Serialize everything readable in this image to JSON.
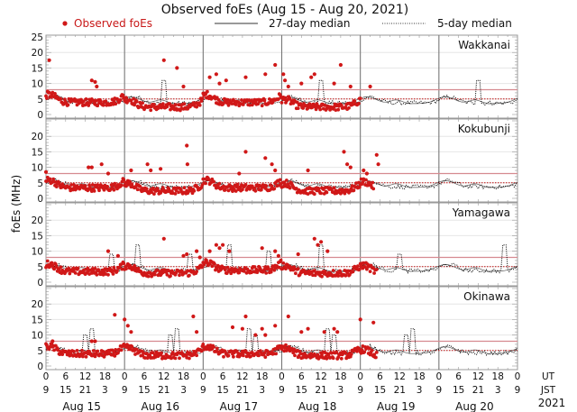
{
  "chart_data": {
    "type": "scatter",
    "title": "Observed foEs (Aug 15 - Aug 20, 2021)",
    "ylabel": "foEs (MHz)",
    "xlabel": "",
    "ylim": [
      0,
      25
    ],
    "yticks": [
      0,
      5,
      10,
      15,
      20,
      25
    ],
    "xlim_hours_ut": [
      0,
      144
    ],
    "legend": {
      "placement": "top",
      "entries": [
        {
          "label": "Observed foEs",
          "style": "red-dot"
        },
        {
          "label": "27-day median",
          "style": "solid-line"
        },
        {
          "label": "5-day median",
          "style": "dotted-line"
        }
      ]
    },
    "x_axis": {
      "ut_label": "UT",
      "jst_label": "JST",
      "year_label": "2021",
      "ut_ticks": [
        "0",
        "6",
        "12",
        "18",
        "0",
        "6",
        "12",
        "18",
        "0",
        "6",
        "12",
        "18",
        "0",
        "6",
        "12",
        "18",
        "0",
        "6",
        "12",
        "18",
        "0",
        "6",
        "12",
        "18",
        "0"
      ],
      "jst_ticks": [
        "9",
        "15",
        "21",
        "3",
        "9",
        "15",
        "21",
        "3",
        "9",
        "15",
        "21",
        "3",
        "9",
        "15",
        "21",
        "3",
        "9",
        "15",
        "21",
        "3",
        "9",
        "15",
        "21",
        "3",
        "9"
      ],
      "days": [
        "Aug 15",
        "Aug 16",
        "Aug 17",
        "Aug 18",
        "Aug 19",
        "Aug 20"
      ]
    },
    "reference_lines": {
      "upper_threshold_mhz": 8,
      "lower_threshold_mhz": 5
    },
    "colors": {
      "observed": "#d01818",
      "upper_threshold": "#d68a90",
      "lower_threshold": "#c01010",
      "median27": "#555555",
      "median5": "#000000",
      "grid": "#e6e6e6",
      "day_divider": "#777777"
    },
    "panels": [
      {
        "station": "Wakkanai",
        "observed_hours": [
          0,
          96
        ],
        "observed_base_mhz": [
          4.5,
          3.0,
          4.5,
          3.0,
          4.0,
          5.5
        ],
        "median27_base_mhz": 4.5,
        "median5_spikes": [
          {
            "hour": 36,
            "mhz": 11
          },
          {
            "hour": 84,
            "mhz": 11
          },
          {
            "hour": 132,
            "mhz": 11
          }
        ],
        "outliers": [
          {
            "hour": 1,
            "mhz": 17.5
          },
          {
            "hour": 14,
            "mhz": 11
          },
          {
            "hour": 15,
            "mhz": 10.5
          },
          {
            "hour": 15.5,
            "mhz": 9
          },
          {
            "hour": 36,
            "mhz": 17.5
          },
          {
            "hour": 40,
            "mhz": 15
          },
          {
            "hour": 42,
            "mhz": 9
          },
          {
            "hour": 61,
            "mhz": 12
          },
          {
            "hour": 70,
            "mhz": 16
          },
          {
            "hour": 72.5,
            "mhz": 13
          },
          {
            "hour": 73,
            "mhz": 11
          },
          {
            "hour": 74,
            "mhz": 9
          },
          {
            "hour": 50,
            "mhz": 12
          },
          {
            "hour": 53,
            "mhz": 10
          },
          {
            "hour": 55,
            "mhz": 11
          },
          {
            "hour": 52,
            "mhz": 13
          },
          {
            "hour": 67,
            "mhz": 13
          },
          {
            "hour": 78,
            "mhz": 10
          },
          {
            "hour": 81,
            "mhz": 12
          },
          {
            "hour": 82,
            "mhz": 13
          },
          {
            "hour": 88,
            "mhz": 10
          },
          {
            "hour": 93,
            "mhz": 9
          },
          {
            "hour": 90,
            "mhz": 16
          },
          {
            "hour": 99,
            "mhz": 9
          }
        ]
      },
      {
        "station": "Kokubunji",
        "observed_hours": [
          0,
          100
        ],
        "observed_base_mhz": [
          4.0,
          3.0,
          4.0,
          3.0,
          3.5,
          4.5
        ],
        "median27_base_mhz": 4.5,
        "median5_spikes": [],
        "outliers": [
          {
            "hour": 0,
            "mhz": 8.5
          },
          {
            "hour": 13,
            "mhz": 10
          },
          {
            "hour": 14,
            "mhz": 10
          },
          {
            "hour": 17,
            "mhz": 11
          },
          {
            "hour": 19,
            "mhz": 8
          },
          {
            "hour": 26,
            "mhz": 9
          },
          {
            "hour": 31,
            "mhz": 11
          },
          {
            "hour": 32,
            "mhz": 9
          },
          {
            "hour": 35,
            "mhz": 9.5
          },
          {
            "hour": 43,
            "mhz": 17
          },
          {
            "hour": 43.2,
            "mhz": 11
          },
          {
            "hour": 61,
            "mhz": 15
          },
          {
            "hour": 80,
            "mhz": 9
          },
          {
            "hour": 59,
            "mhz": 8
          },
          {
            "hour": 67,
            "mhz": 13
          },
          {
            "hour": 69,
            "mhz": 11
          },
          {
            "hour": 70,
            "mhz": 9
          },
          {
            "hour": 91,
            "mhz": 15
          },
          {
            "hour": 92,
            "mhz": 11
          },
          {
            "hour": 93,
            "mhz": 10
          },
          {
            "hour": 97,
            "mhz": 9
          },
          {
            "hour": 98,
            "mhz": 8
          },
          {
            "hour": 101,
            "mhz": 14
          },
          {
            "hour": 101.5,
            "mhz": 11
          }
        ]
      },
      {
        "station": "Yamagawa",
        "observed_hours": [
          0,
          101
        ],
        "observed_base_mhz": [
          4.0,
          3.5,
          4.5,
          3.5,
          3.5,
          4.0
        ],
        "median27_base_mhz": 4.5,
        "median5_spikes": [
          {
            "hour": 20,
            "mhz": 9
          },
          {
            "hour": 28,
            "mhz": 12
          },
          {
            "hour": 44,
            "mhz": 9
          },
          {
            "hour": 56,
            "mhz": 12
          },
          {
            "hour": 68,
            "mhz": 10
          },
          {
            "hour": 84,
            "mhz": 12
          },
          {
            "hour": 108,
            "mhz": 9
          },
          {
            "hour": 140,
            "mhz": 12
          }
        ],
        "outliers": [
          {
            "hour": 19,
            "mhz": 10
          },
          {
            "hour": 22,
            "mhz": 8.5
          },
          {
            "hour": 42,
            "mhz": 8.5
          },
          {
            "hour": 43,
            "mhz": 9
          },
          {
            "hour": 36,
            "mhz": 14
          },
          {
            "hour": 46,
            "mhz": 10
          },
          {
            "hour": 47,
            "mhz": 8
          },
          {
            "hour": 50,
            "mhz": 10
          },
          {
            "hour": 52,
            "mhz": 12
          },
          {
            "hour": 53,
            "mhz": 11
          },
          {
            "hour": 54,
            "mhz": 12
          },
          {
            "hour": 56,
            "mhz": 10
          },
          {
            "hour": 66,
            "mhz": 11
          },
          {
            "hour": 70,
            "mhz": 10
          },
          {
            "hour": 71,
            "mhz": 8.5
          },
          {
            "hour": 77,
            "mhz": 9
          },
          {
            "hour": 82,
            "mhz": 14
          },
          {
            "hour": 83,
            "mhz": 12
          },
          {
            "hour": 84,
            "mhz": 13
          },
          {
            "hour": 86,
            "mhz": 10
          }
        ]
      },
      {
        "station": "Okinawa",
        "observed_hours": [
          0,
          101
        ],
        "observed_base_mhz": [
          4.5,
          4.0,
          4.5,
          4.0,
          3.5,
          4.5
        ],
        "median27_base_mhz": 5.0,
        "median5_spikes": [
          {
            "hour": 12,
            "mhz": 10
          },
          {
            "hour": 14,
            "mhz": 12
          },
          {
            "hour": 38,
            "mhz": 10
          },
          {
            "hour": 40,
            "mhz": 12
          },
          {
            "hour": 62,
            "mhz": 12
          },
          {
            "hour": 64,
            "mhz": 10
          },
          {
            "hour": 86,
            "mhz": 12
          },
          {
            "hour": 88,
            "mhz": 10
          },
          {
            "hour": 110,
            "mhz": 10
          },
          {
            "hour": 112,
            "mhz": 12
          }
        ],
        "outliers": [
          {
            "hour": 2,
            "mhz": 8
          },
          {
            "hour": 14,
            "mhz": 8
          },
          {
            "hour": 15,
            "mhz": 8
          },
          {
            "hour": 21,
            "mhz": 16.5
          },
          {
            "hour": 24,
            "mhz": 15
          },
          {
            "hour": 25,
            "mhz": 13
          },
          {
            "hour": 26,
            "mhz": 11
          },
          {
            "hour": 45,
            "mhz": 16
          },
          {
            "hour": 46,
            "mhz": 11
          },
          {
            "hour": 57,
            "mhz": 12.5
          },
          {
            "hour": 60,
            "mhz": 12
          },
          {
            "hour": 61,
            "mhz": 16
          },
          {
            "hour": 64,
            "mhz": 10
          },
          {
            "hour": 66,
            "mhz": 12
          },
          {
            "hour": 67,
            "mhz": 10
          },
          {
            "hour": 70,
            "mhz": 13
          },
          {
            "hour": 74,
            "mhz": 16
          },
          {
            "hour": 78,
            "mhz": 11
          },
          {
            "hour": 80,
            "mhz": 12
          },
          {
            "hour": 85,
            "mhz": 11
          },
          {
            "hour": 88,
            "mhz": 12
          },
          {
            "hour": 89,
            "mhz": 11
          },
          {
            "hour": 96,
            "mhz": 15
          },
          {
            "hour": 100,
            "mhz": 14
          }
        ]
      }
    ]
  }
}
